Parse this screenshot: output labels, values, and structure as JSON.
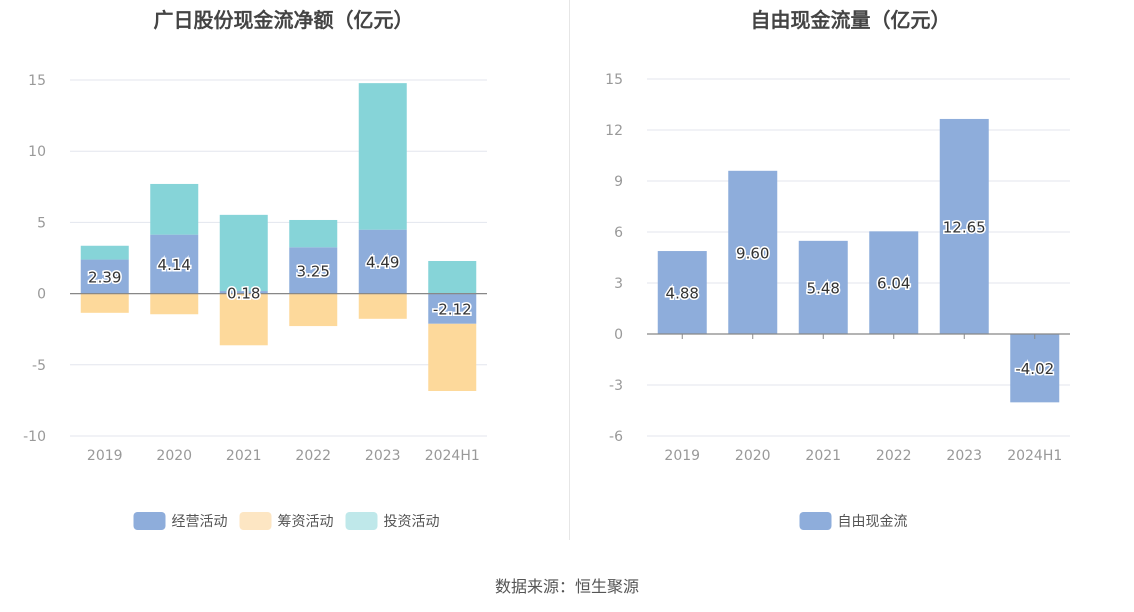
{
  "left_title": "广日股份现金流净额（亿元）",
  "right_title": "自由现金流量（亿元）",
  "source": "数据来源：恒生聚源",
  "chart_data": [
    {
      "type": "bar",
      "stacked": true,
      "title": "广日股份现金流净额（亿元）",
      "categories": [
        "2019",
        "2020",
        "2021",
        "2022",
        "2023",
        "2024H1"
      ],
      "ylim": [
        -10,
        15
      ],
      "yticks": [
        -10,
        -5,
        0,
        5,
        10,
        15
      ],
      "grid": true,
      "legend_position": "bottom",
      "series": [
        {
          "name": "经营活动",
          "color": "#8eaddb",
          "values": [
            2.39,
            4.14,
            0.18,
            3.25,
            4.49,
            -2.12
          ],
          "labels": [
            "2.39",
            "4.14",
            "0.18",
            "3.25",
            "4.49",
            "-2.12"
          ]
        },
        {
          "name": "筹资活动",
          "color": "#fdd99b",
          "values": [
            -1.35,
            -1.45,
            -3.63,
            -2.28,
            -1.77,
            -4.72
          ]
        },
        {
          "name": "投资活动",
          "color": "#86d4d8",
          "values": [
            0.97,
            3.56,
            5.35,
            1.92,
            10.29,
            2.29
          ]
        }
      ],
      "legend_colors": [
        "#8eaddb",
        "#fde6c3",
        "#bfe8ea"
      ]
    },
    {
      "type": "bar",
      "title": "自由现金流量（亿元）",
      "categories": [
        "2019",
        "2020",
        "2021",
        "2022",
        "2023",
        "2024H1"
      ],
      "ylim": [
        -6,
        15
      ],
      "yticks": [
        -6,
        -3,
        0,
        3,
        6,
        9,
        12,
        15
      ],
      "grid": true,
      "legend_position": "bottom",
      "series": [
        {
          "name": "自由现金流",
          "color": "#8eaddb",
          "values": [
            4.88,
            9.6,
            5.48,
            6.04,
            12.65,
            -4.02
          ],
          "labels": [
            "4.88",
            "9.60",
            "5.48",
            "6.04",
            "12.65",
            "-4.02"
          ]
        }
      ]
    }
  ]
}
